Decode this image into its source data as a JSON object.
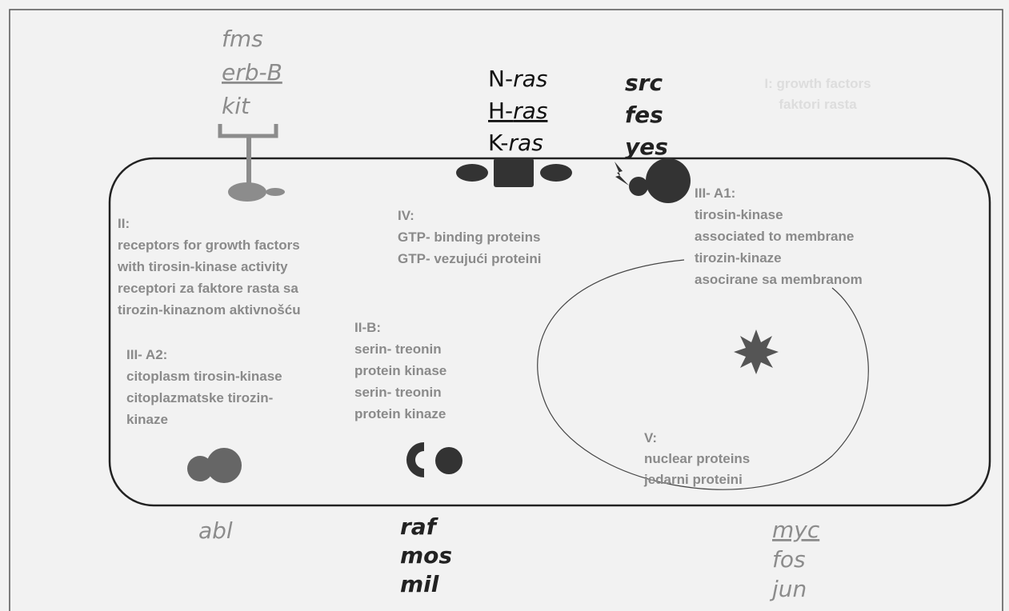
{
  "growth_factors": {
    "lines": [
      "I: growth factors",
      "faktori rasta"
    ]
  },
  "receptor_genes": [
    "fms",
    "erb-B",
    "kit"
  ],
  "ras_genes": [
    {
      "prefix": "N-",
      "name": "ras"
    },
    {
      "prefix": "H-",
      "name": "ras"
    },
    {
      "prefix": "K-",
      "name": "ras"
    }
  ],
  "src_genes": [
    "src",
    "fes",
    "yes"
  ],
  "receptors": {
    "lines": [
      "II:",
      "receptors for growth factors",
      "with tirosin-kinase activity",
      "receptori za faktore rasta sa",
      "tirozin-kinaznom aktivnošću"
    ]
  },
  "gtp_proteins": {
    "lines": [
      "IV:",
      "GTP- binding proteins",
      "GTP- vezujući proteini"
    ]
  },
  "membrane_kinases": {
    "lines": [
      "III- A1:",
      "tirosin-kinase",
      "associated to membrane",
      "tirozin-kinaze",
      "asocirane sa membranom"
    ]
  },
  "serine_kinases": {
    "lines": [
      "II-B:",
      "serin- treonin",
      "protein kinase",
      "serin- treonin",
      "protein kinaze"
    ]
  },
  "cytoplasm_kinases": {
    "lines": [
      "III- A2:",
      "citoplasm tirosin-kinase",
      "citoplazmatske  tirozin-",
      "kinaze"
    ]
  },
  "nuclear_proteins": {
    "lines": [
      "V:",
      "nuclear proteins",
      "jedarni proteini"
    ]
  },
  "abl_genes": [
    "abl"
  ],
  "raf_genes": [
    "raf",
    "mos",
    "mil"
  ],
  "nuclear_genes": [
    "myc",
    "fos",
    "jun"
  ]
}
